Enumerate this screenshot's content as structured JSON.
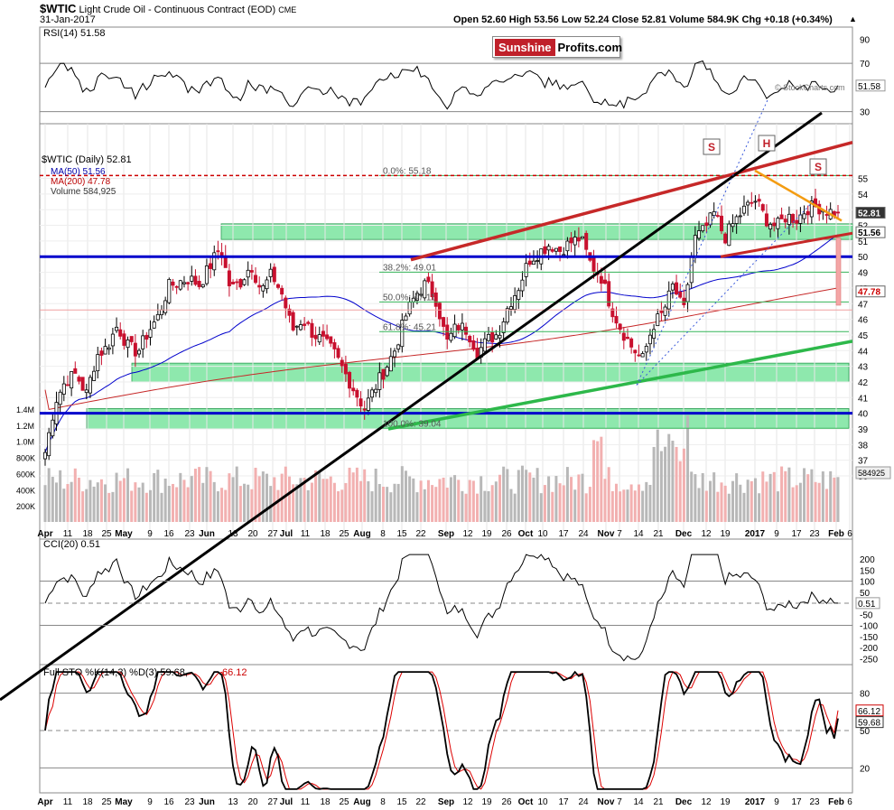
{
  "header": {
    "symbol": "$WTIC",
    "name": "Light Crude Oil - Continuous Contract (EOD)",
    "exchange": "CME",
    "date": "31-Jan-2017",
    "ohlc": "Open 52.60  High 53.56  Low 52.24  Close 52.81  Volume 584.9K  Chg +0.18 (+0.34%)",
    "arrow": "▲"
  },
  "logo": {
    "part1": "Sunshine",
    "part2": "Profits.com"
  },
  "watermark": "© StockCharts.com",
  "rsi": {
    "label": "RSI(14) 51.58",
    "value_label": "51.58",
    "ticks": [
      "90",
      "70",
      "50",
      "30"
    ]
  },
  "price_legend": {
    "title": "$WTIC (Daily) 52.81",
    "ma50": "MA(50) 51.56",
    "ma200": "MA(200) 47.78",
    "volume": "Volume 584,925"
  },
  "price_axis": {
    "ticks": [
      "55",
      "54",
      "53",
      "52",
      "51",
      "50",
      "49",
      "48",
      "47",
      "46",
      "45",
      "44",
      "43",
      "42",
      "41",
      "40",
      "39",
      "38",
      "37",
      "36"
    ],
    "tags": [
      {
        "text": "52.81",
        "style": "dark"
      },
      {
        "text": "51.56",
        "style": "blue"
      },
      {
        "text": "47.78",
        "style": "red"
      },
      {
        "text": "584925",
        "style": "gray"
      }
    ]
  },
  "volume_axis": {
    "ticks": [
      "1.4M",
      "1.2M",
      "1.0M",
      "800K",
      "600K",
      "400K",
      "200K"
    ]
  },
  "fib": [
    {
      "label": "0.0%: 55.18"
    },
    {
      "label": "38.2%: 49.01"
    },
    {
      "label": "50.0%: 47.11"
    },
    {
      "label": "61.8%: 45.21"
    },
    {
      "label": "100.0%: 39.04"
    }
  ],
  "pattern_markers": [
    "S",
    "H",
    "S"
  ],
  "cci": {
    "label": "CCI(20) 0.51",
    "value_label": "0.51",
    "ticks": [
      "200",
      "150",
      "100",
      "50",
      "0",
      "-50",
      "-100",
      "-150",
      "-200",
      "-250"
    ]
  },
  "sto": {
    "label": "Full STO %K(14,3) %D(3) 59.68,",
    "label_d": "66.12",
    "k_value": "59.68",
    "d_value": "66.12",
    "ticks": [
      "80",
      "50",
      "20"
    ]
  },
  "x_axis": [
    {
      "label": "Apr",
      "bold": true
    },
    {
      "label": "11"
    },
    {
      "label": "18"
    },
    {
      "label": "25"
    },
    {
      "label": "May",
      "bold": true
    },
    {
      "label": "9"
    },
    {
      "label": "16"
    },
    {
      "label": "23"
    },
    {
      "label": "Jun",
      "bold": true
    },
    {
      "label": "13"
    },
    {
      "label": "20"
    },
    {
      "label": "27"
    },
    {
      "label": "Jul",
      "bold": true
    },
    {
      "label": "11"
    },
    {
      "label": "18"
    },
    {
      "label": "25"
    },
    {
      "label": "Aug",
      "bold": true
    },
    {
      "label": "8"
    },
    {
      "label": "15"
    },
    {
      "label": "22"
    },
    {
      "label": "Sep",
      "bold": true
    },
    {
      "label": "12"
    },
    {
      "label": "19"
    },
    {
      "label": "26"
    },
    {
      "label": "Oct",
      "bold": true
    },
    {
      "label": "10"
    },
    {
      "label": "17"
    },
    {
      "label": "24"
    },
    {
      "label": "Nov",
      "bold": true
    },
    {
      "label": "7"
    },
    {
      "label": "14"
    },
    {
      "label": "21"
    },
    {
      "label": "Dec",
      "bold": true
    },
    {
      "label": "12"
    },
    {
      "label": "19"
    },
    {
      "label": "2017",
      "bold": true
    },
    {
      "label": "9"
    },
    {
      "label": "17"
    },
    {
      "label": "23"
    },
    {
      "label": "Feb",
      "bold": true
    },
    {
      "label": "6"
    }
  ],
  "colors": {
    "up": "#000000",
    "down": "#c8102e",
    "blue": "#0000cc",
    "green_zone": "#5ede8a",
    "trend_red": "#c62828",
    "trend_green": "#2db84a",
    "orange": "#f39c12"
  },
  "chart_data": {
    "type": "candlestick",
    "title": "$WTIC Light Crude Oil - Continuous Contract (EOD)",
    "date_range": [
      "2016-04-01",
      "2017-01-31"
    ],
    "ylim": [
      35,
      56
    ],
    "last": {
      "open": 52.6,
      "high": 53.56,
      "low": 52.24,
      "close": 52.81,
      "volume": 584925
    },
    "price_path": [
      [
        "Apr",
        37.5
      ],
      [
        "Apr",
        40.8
      ],
      [
        "Apr 11",
        42.1
      ],
      [
        "Apr 11",
        42.5
      ],
      [
        "Apr 18",
        41.2
      ],
      [
        "Apr 18",
        43.7
      ],
      [
        "Apr 25",
        44.2
      ],
      [
        "Apr 25",
        45.6
      ],
      [
        "May",
        44.3
      ],
      [
        "May",
        43.9
      ],
      [
        "May 9",
        45.2
      ],
      [
        "May 9",
        46.2
      ],
      [
        "May 16",
        48.1
      ],
      [
        "May 16",
        48.4
      ],
      [
        "May 23",
        48.6
      ],
      [
        "May 23",
        48.2
      ],
      [
        "Jun",
        49.4
      ],
      [
        "Jun",
        50.6
      ],
      [
        "Jun 13",
        47.9
      ],
      [
        "Jun 13",
        48.4
      ],
      [
        "Jun 20",
        49.5
      ],
      [
        "Jun 20",
        47.8
      ],
      [
        "Jun 27",
        48.9
      ],
      [
        "Jun 27",
        47.6
      ],
      [
        "Jul",
        45.3
      ],
      [
        "Jul 11",
        46.0
      ],
      [
        "Jul 11",
        45.1
      ],
      [
        "Jul 18",
        44.6
      ],
      [
        "Jul 18",
        43.9
      ],
      [
        "Jul 25",
        42.7
      ],
      [
        "Jul 25",
        41.5
      ],
      [
        "Aug",
        40.3
      ],
      [
        "Aug",
        41.6
      ],
      [
        "Aug 8",
        42.8
      ],
      [
        "Aug 8",
        44.1
      ],
      [
        "Aug 15",
        46.2
      ],
      [
        "Aug 15",
        47.6
      ],
      [
        "Aug 22",
        48.3
      ],
      [
        "Aug 22",
        47.2
      ],
      [
        "Sep",
        44.5
      ],
      [
        "Sep",
        45.6
      ],
      [
        "Sep 12",
        45.3
      ],
      [
        "Sep 12",
        43.9
      ],
      [
        "Sep 19",
        44.7
      ],
      [
        "Sep 19",
        45.1
      ],
      [
        "Sep 26",
        46.9
      ],
      [
        "Sep 26",
        48.1
      ],
      [
        "Oct",
        49.8
      ],
      [
        "Oct",
        50.3
      ],
      [
        "Oct 10",
        50.8
      ],
      [
        "Oct 10",
        50.4
      ],
      [
        "Oct 17",
        50.9
      ],
      [
        "Oct 17",
        51.2
      ],
      [
        "Oct 24",
        49.5
      ],
      [
        "Oct 24",
        48.7
      ],
      [
        "Nov",
        46.7
      ],
      [
        "Nov",
        45.3
      ],
      [
        "Nov 7",
        44.2
      ],
      [
        "Nov 7",
        43.4
      ],
      [
        "Nov 14",
        45.6
      ],
      [
        "Nov 14",
        46.4
      ],
      [
        "Nov 21",
        48.2
      ],
      [
        "Nov 21",
        46.4
      ],
      [
        "Dec",
        51.1
      ],
      [
        "Dec",
        51.7
      ],
      [
        "Dec 12",
        52.8
      ],
      [
        "Dec 12",
        51.2
      ],
      [
        "Dec 19",
        52.3
      ],
      [
        "Dec 19",
        53.1
      ],
      [
        "2017",
        53.6
      ],
      [
        "2017",
        52.4
      ],
      [
        "Jan 9",
        51.9
      ],
      [
        "Jan 9",
        52.6
      ],
      [
        "Jan 17",
        52.4
      ],
      [
        "Jan 17",
        53.1
      ],
      [
        "Jan 23",
        53.2
      ],
      [
        "Jan 23",
        52.9
      ],
      [
        "Jan 31",
        52.81
      ]
    ],
    "ma50_end": 51.56,
    "ma200_end": 47.78,
    "rsi_end": 51.58,
    "cci_end": 0.51,
    "sto_k_end": 59.68,
    "sto_d_end": 66.12
  }
}
